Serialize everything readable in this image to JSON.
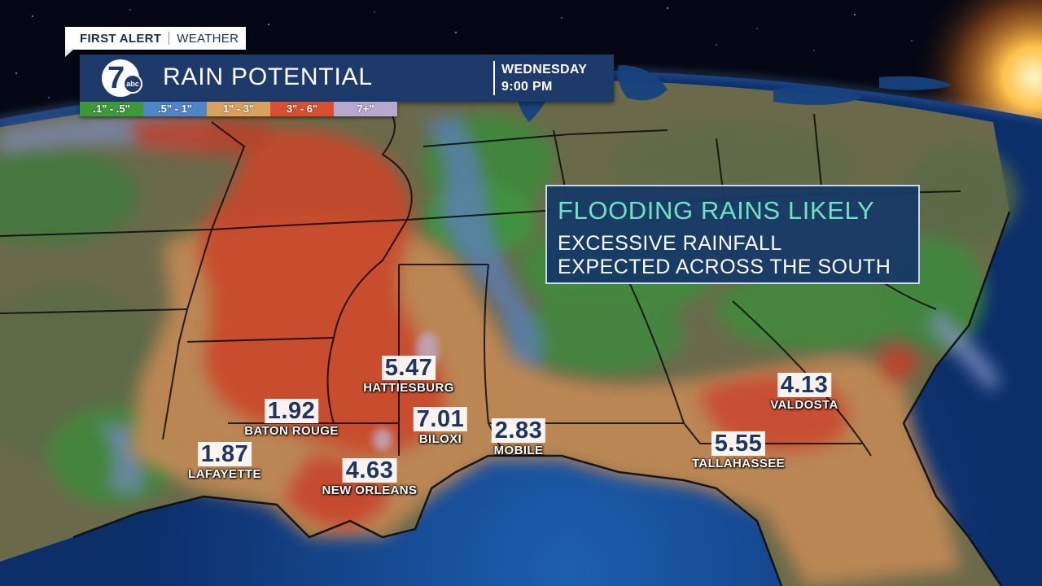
{
  "brand": {
    "label_bold": "FIRST ALERT",
    "label_light": "WEATHER"
  },
  "title": {
    "text": "RAIN POTENTIAL",
    "day": "WEDNESDAY",
    "time": "9:00 PM",
    "logo_number": "7",
    "logo_badge": "abc"
  },
  "legend": [
    {
      "label": ".1\" - .5\"",
      "color": "#3c9a3a"
    },
    {
      "label": ".5\" - 1\"",
      "color": "#4f86c8"
    },
    {
      "label": "1\" - 3\"",
      "color": "#d9a25c"
    },
    {
      "label": "3\" - 6\"",
      "color": "#d9502f"
    },
    {
      "label": "7+\"",
      "color": "#b8a8cf"
    }
  ],
  "callout": {
    "headline": "FLOODING RAINS LIKELY",
    "line1": "EXCESSIVE RAINFALL",
    "line2": "EXPECTED ACROSS THE SOUTH"
  },
  "cities": [
    {
      "name": "HATTIESBURG",
      "value": "5.47"
    },
    {
      "name": "BATON ROUGE",
      "value": "1.92"
    },
    {
      "name": "BILOXI",
      "value": "7.01"
    },
    {
      "name": "MOBILE",
      "value": "2.83"
    },
    {
      "name": "LAFAYETTE",
      "value": "1.87"
    },
    {
      "name": "NEW ORLEANS",
      "value": "4.63"
    },
    {
      "name": "TALLAHASSEE",
      "value": "5.55"
    },
    {
      "name": "VALDOSTA",
      "value": "4.13"
    }
  ]
}
